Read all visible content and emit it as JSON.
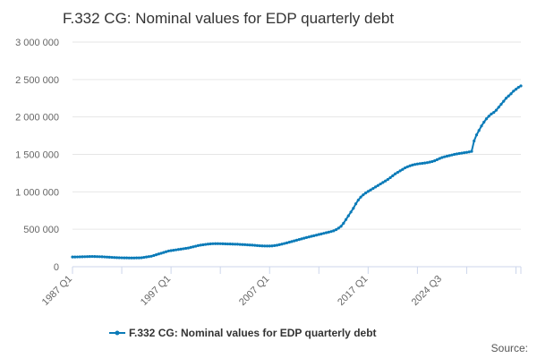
{
  "chart_data": {
    "type": "line",
    "title": "F.332 CG: Nominal values for EDP quarterly debt",
    "xlabel": "",
    "ylabel": "",
    "source_label": "Source:",
    "colors": {
      "series": "#0b7bb8",
      "grid": "#e6e6e6",
      "axis": "#ccd6eb"
    },
    "grid": true,
    "legend_position": "bottom-center",
    "x_start": "1987 Q1",
    "x_ticks": [
      "1987 Q1",
      "1997 Q1",
      "2007 Q1",
      "2017 Q1",
      "2024 Q3"
    ],
    "y_ticks": [
      "0",
      "500 000",
      "1 000 000",
      "1 500 000",
      "2 000 000",
      "2 500 000",
      "3 000 000"
    ],
    "ylim": [
      0,
      3000000
    ],
    "series": [
      {
        "name": "F.332 CG: Nominal values for EDP quarterly debt",
        "values": [
          130000,
          130000,
          131000,
          132000,
          133000,
          134000,
          135000,
          136000,
          137000,
          136000,
          135000,
          134000,
          133000,
          131000,
          129000,
          127000,
          125000,
          123000,
          121000,
          120000,
          119000,
          118000,
          118000,
          117000,
          117000,
          117000,
          118000,
          118000,
          120000,
          125000,
          130000,
          135000,
          140000,
          150000,
          160000,
          170000,
          180000,
          190000,
          200000,
          210000,
          215000,
          220000,
          225000,
          230000,
          235000,
          240000,
          245000,
          250000,
          258000,
          266000,
          274000,
          282000,
          288000,
          293000,
          298000,
          302000,
          305000,
          307000,
          308000,
          308000,
          307000,
          306000,
          305000,
          304000,
          303000,
          302000,
          301000,
          300000,
          298000,
          296000,
          294000,
          292000,
          290000,
          288000,
          285000,
          282000,
          280000,
          278000,
          277000,
          276000,
          276000,
          278000,
          282000,
          287000,
          294000,
          302000,
          310000,
          318000,
          327000,
          336000,
          345000,
          354000,
          363000,
          372000,
          381000,
          390000,
          398000,
          406000,
          414000,
          422000,
          430000,
          438000,
          446000,
          454000,
          462000,
          470000,
          480000,
          495000,
          515000,
          540000,
          580000,
          630000,
          680000,
          730000,
          780000,
          840000,
          890000,
          930000,
          960000,
          985000,
          1005000,
          1025000,
          1045000,
          1065000,
          1085000,
          1105000,
          1125000,
          1145000,
          1165000,
          1190000,
          1215000,
          1240000,
          1260000,
          1280000,
          1300000,
          1320000,
          1335000,
          1348000,
          1358000,
          1366000,
          1372000,
          1377000,
          1381000,
          1385000,
          1390000,
          1397000,
          1405000,
          1415000,
          1430000,
          1445000,
          1458000,
          1468000,
          1476000,
          1484000,
          1492000,
          1500000,
          1506000,
          1512000,
          1517000,
          1522000,
          1527000,
          1533000,
          1540000,
          1680000,
          1760000,
          1820000,
          1880000,
          1930000,
          1975000,
          2010000,
          2040000,
          2060000,
          2090000,
          2130000,
          2170000,
          2210000,
          2250000,
          2280000,
          2310000,
          2345000,
          2370000,
          2395000,
          2415000
        ]
      }
    ]
  }
}
